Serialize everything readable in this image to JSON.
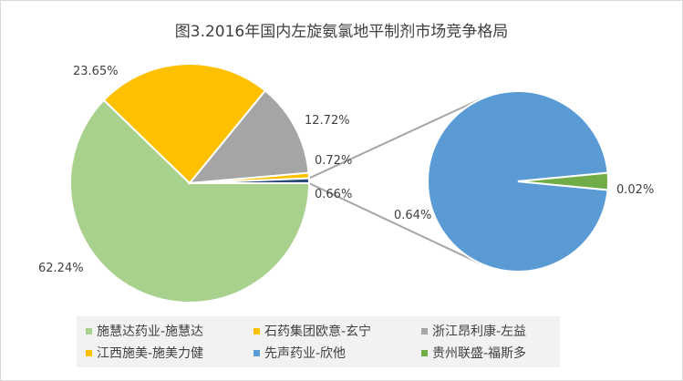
{
  "chart_data": {
    "type": "pie",
    "subtype": "pie-of-pie",
    "title": "图3.2016年国内左旋氨氯地平制剂市场竞争格局",
    "series": [
      {
        "name": "施慧达药业-施慧达",
        "value": 62.24,
        "label": "62.24%",
        "color": "#a9d18e"
      },
      {
        "name": "石药集团欧意-玄宁",
        "value": 23.65,
        "label": "23.65%",
        "color": "#ffc000"
      },
      {
        "name": "浙江昂利康-左益",
        "value": 12.72,
        "label": "12.72%",
        "color": "#a5a5a5"
      },
      {
        "name": "江西施美-施美力健",
        "value": 0.72,
        "label": "0.72%",
        "color": "#ffc000"
      },
      {
        "name": "先声药业-欣他",
        "value": 0.64,
        "label": "0.64%",
        "color": "#5b9bd5"
      },
      {
        "name": "贵州联盛-福斯多",
        "value": 0.02,
        "label": "0.02%",
        "color": "#70ad47"
      }
    ],
    "other_slice_label": "0.66%",
    "legend_position": "bottom"
  }
}
